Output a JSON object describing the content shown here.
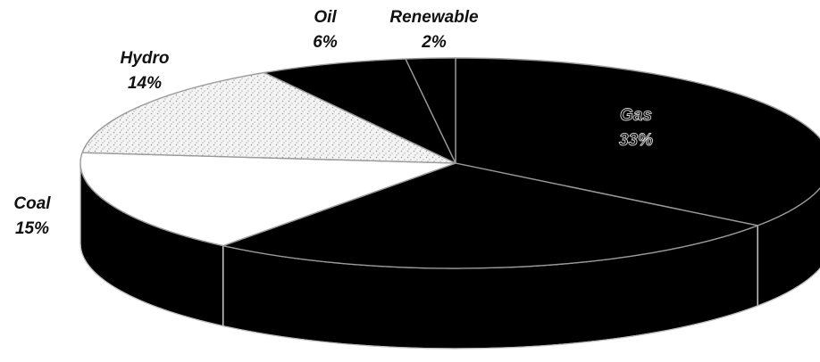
{
  "chart_data": {
    "type": "pie",
    "style": "3d",
    "slices": [
      {
        "label": "Gas",
        "value": 33,
        "value_label": "33%",
        "color": "#000000"
      },
      {
        "label": "",
        "value": 24,
        "value_label": "",
        "color": "#000000"
      },
      {
        "label": "Coal",
        "value": 15,
        "value_label": "15%",
        "color": "#ffffff"
      },
      {
        "label": "Hydro",
        "value": 14,
        "value_label": "14%",
        "color": "#f2f2f2"
      },
      {
        "label": "Oil",
        "value": 6,
        "value_label": "6%",
        "color": "#000000"
      },
      {
        "label": "Renewable",
        "value": 2,
        "value_label": "2%",
        "color": "#000000"
      }
    ],
    "legend": "none"
  }
}
